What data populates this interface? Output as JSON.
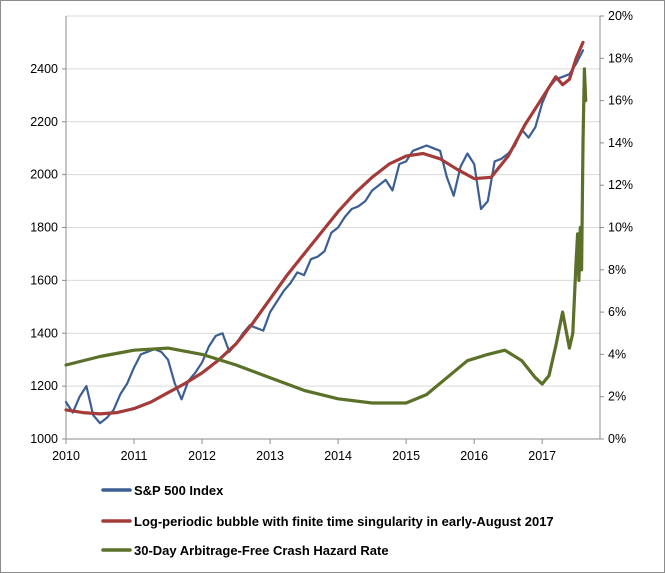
{
  "chart_data": {
    "type": "line",
    "title": "",
    "xlabel": "",
    "ylabel": "",
    "y2label": "",
    "xlim": [
      2010,
      2017.85
    ],
    "ylim": [
      1000,
      2600
    ],
    "y2lim": [
      0,
      20
    ],
    "grid": "horizontal",
    "legend_position": "bottom",
    "x_ticks": [
      2010,
      2011,
      2012,
      2013,
      2014,
      2015,
      2016,
      2017
    ],
    "x_tick_labels": [
      "2010",
      "2011",
      "2012",
      "2013",
      "2014",
      "2015",
      "2016",
      "2017"
    ],
    "y_ticks": [
      1000,
      1200,
      1400,
      1600,
      1800,
      2000,
      2200,
      2400
    ],
    "y_tick_labels": [
      "1000",
      "1200",
      "1400",
      "1600",
      "1800",
      "2000",
      "2200",
      "2400"
    ],
    "y2_ticks": [
      0,
      2,
      4,
      6,
      8,
      10,
      12,
      14,
      16,
      18,
      20
    ],
    "y2_tick_labels": [
      "0%",
      "2%",
      "4%",
      "6%",
      "8%",
      "10%",
      "12%",
      "14%",
      "16%",
      "18%",
      "20%"
    ],
    "series": [
      {
        "name": "S&P 500 Index",
        "axis": "left",
        "color": "#3c5f93",
        "x": [
          2010.0,
          2010.1,
          2010.2,
          2010.3,
          2010.4,
          2010.5,
          2010.6,
          2010.7,
          2010.8,
          2010.9,
          2011.0,
          2011.1,
          2011.2,
          2011.3,
          2011.4,
          2011.5,
          2011.6,
          2011.7,
          2011.8,
          2011.9,
          2012.0,
          2012.1,
          2012.2,
          2012.3,
          2012.4,
          2012.5,
          2012.6,
          2012.7,
          2012.8,
          2012.9,
          2013.0,
          2013.1,
          2013.2,
          2013.3,
          2013.4,
          2013.5,
          2013.6,
          2013.7,
          2013.8,
          2013.9,
          2014.0,
          2014.1,
          2014.2,
          2014.3,
          2014.4,
          2014.5,
          2014.6,
          2014.7,
          2014.8,
          2014.9,
          2015.0,
          2015.1,
          2015.2,
          2015.3,
          2015.4,
          2015.5,
          2015.6,
          2015.7,
          2015.8,
          2015.9,
          2016.0,
          2016.1,
          2016.2,
          2016.3,
          2016.4,
          2016.5,
          2016.6,
          2016.7,
          2016.8,
          2016.9,
          2017.0,
          2017.1,
          2017.2,
          2017.3,
          2017.4,
          2017.5,
          2017.6
        ],
        "values": [
          1140,
          1100,
          1160,
          1200,
          1090,
          1060,
          1080,
          1110,
          1170,
          1210,
          1270,
          1320,
          1330,
          1340,
          1330,
          1300,
          1210,
          1150,
          1220,
          1250,
          1290,
          1350,
          1390,
          1400,
          1330,
          1360,
          1400,
          1430,
          1420,
          1410,
          1480,
          1520,
          1560,
          1590,
          1630,
          1620,
          1680,
          1690,
          1710,
          1780,
          1800,
          1840,
          1870,
          1880,
          1900,
          1940,
          1960,
          1980,
          1940,
          2040,
          2050,
          2090,
          2100,
          2110,
          2100,
          2090,
          1990,
          1920,
          2030,
          2080,
          2040,
          1870,
          1900,
          2050,
          2060,
          2080,
          2110,
          2170,
          2140,
          2180,
          2270,
          2330,
          2360,
          2370,
          2380,
          2420,
          2470
        ]
      },
      {
        "name": "Log-periodic bubble with finite time singularity in early-August 2017",
        "axis": "left",
        "color": "#a33b3a",
        "x": [
          2010.0,
          2010.25,
          2010.5,
          2010.75,
          2011.0,
          2011.25,
          2011.5,
          2011.75,
          2012.0,
          2012.25,
          2012.5,
          2012.75,
          2013.0,
          2013.25,
          2013.5,
          2013.75,
          2014.0,
          2014.25,
          2014.5,
          2014.75,
          2015.0,
          2015.25,
          2015.5,
          2015.75,
          2016.0,
          2016.25,
          2016.5,
          2016.75,
          2017.0,
          2017.1,
          2017.2,
          2017.3,
          2017.4,
          2017.5,
          2017.6
        ],
        "values": [
          1110,
          1100,
          1095,
          1100,
          1115,
          1140,
          1175,
          1210,
          1250,
          1300,
          1360,
          1440,
          1530,
          1620,
          1700,
          1780,
          1860,
          1930,
          1990,
          2040,
          2070,
          2080,
          2060,
          2020,
          1985,
          1990,
          2070,
          2190,
          2290,
          2330,
          2370,
          2340,
          2360,
          2440,
          2500
        ]
      },
      {
        "name": "30-Day Arbitrage-Free Crash Hazard Rate",
        "axis": "right",
        "color": "#5b7028",
        "x": [
          2010.0,
          2010.5,
          2011.0,
          2011.5,
          2012.0,
          2012.5,
          2013.0,
          2013.5,
          2014.0,
          2014.5,
          2015.0,
          2015.3,
          2015.6,
          2015.9,
          2016.2,
          2016.45,
          2016.7,
          2016.9,
          2017.0,
          2017.1,
          2017.2,
          2017.3,
          2017.4,
          2017.45,
          2017.5,
          2017.52,
          2017.54,
          2017.56,
          2017.58,
          2017.6,
          2017.62,
          2017.64
        ],
        "values": [
          3.5,
          3.9,
          4.2,
          4.3,
          4.0,
          3.5,
          2.9,
          2.3,
          1.9,
          1.7,
          1.7,
          2.1,
          2.9,
          3.7,
          4.0,
          4.2,
          3.7,
          2.9,
          2.6,
          3.0,
          4.4,
          6.0,
          4.3,
          5.0,
          8.5,
          9.7,
          7.5,
          10.0,
          8.0,
          14.0,
          17.5,
          16.0
        ]
      }
    ]
  }
}
